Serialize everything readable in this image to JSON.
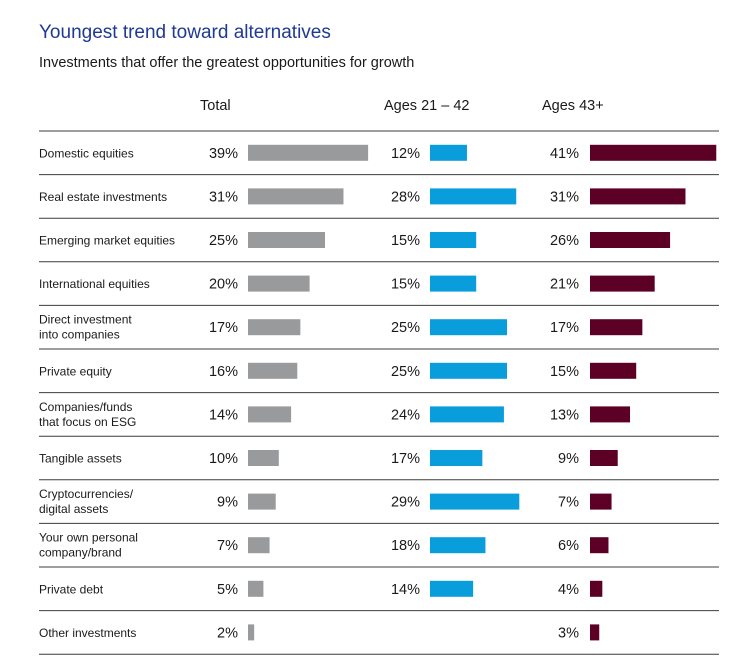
{
  "header": {
    "title": "Youngest trend toward alternatives",
    "subtitle": "Investments that offer the greatest opportunities for growth"
  },
  "colors": {
    "total": "#999a9c",
    "young": "#0a9ddc",
    "old": "#5c0025",
    "divider": "#3d3d3d",
    "title": "#1f3a93"
  },
  "chart_data": {
    "type": "bar",
    "orientation": "horizontal",
    "title": "Youngest trend toward alternatives",
    "subtitle": "Investments that offer the greatest opportunities for growth",
    "unit": "%",
    "categories": [
      "Domestic equities",
      "Real estate investments",
      "Emerging market equities",
      "International equities",
      "Direct investment into companies",
      "Private equity",
      "Companies/funds that focus on ESG",
      "Tangible assets",
      "Cryptocurrencies/ digital assets",
      "Your own personal company/brand",
      "Private debt",
      "Other investments"
    ],
    "category_lines": [
      [
        "Domestic equities"
      ],
      [
        "Real estate investments"
      ],
      [
        "Emerging market equities"
      ],
      [
        "International equities"
      ],
      [
        "Direct investment",
        "into companies"
      ],
      [
        "Private equity"
      ],
      [
        "Companies/funds",
        "that focus on ESG"
      ],
      [
        "Tangible assets"
      ],
      [
        "Cryptocurrencies/",
        "digital assets"
      ],
      [
        "Your own personal",
        "company/brand"
      ],
      [
        "Private debt"
      ],
      [
        "Other investments"
      ]
    ],
    "series": [
      {
        "name": "Total",
        "color": "#999a9c",
        "values": [
          39,
          31,
          25,
          20,
          17,
          16,
          14,
          10,
          9,
          7,
          5,
          2
        ]
      },
      {
        "name": "Ages 21 – 42",
        "color": "#0a9ddc",
        "values": [
          12,
          28,
          15,
          15,
          25,
          25,
          24,
          17,
          29,
          18,
          14,
          null
        ]
      },
      {
        "name": "Ages 43+",
        "color": "#5c0025",
        "values": [
          41,
          31,
          26,
          21,
          17,
          15,
          13,
          9,
          7,
          6,
          4,
          3
        ]
      }
    ],
    "legend": "none",
    "grid": false
  }
}
